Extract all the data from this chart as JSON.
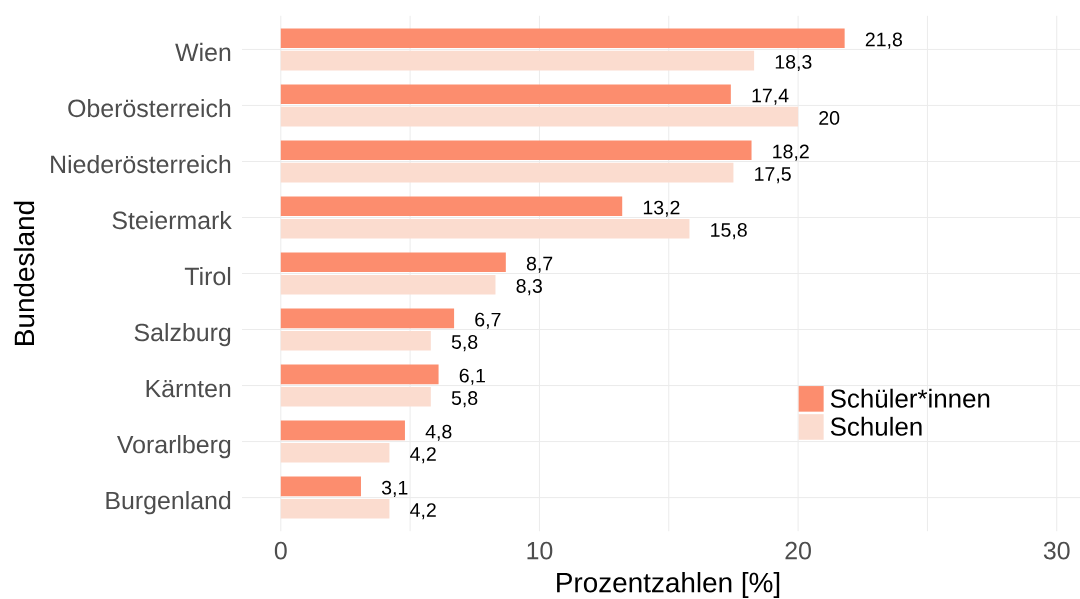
{
  "chart_data": {
    "type": "bar",
    "orientation": "horizontal",
    "xlabel": "Prozentzahlen [%]",
    "ylabel": "Bundesland",
    "categories": [
      "Wien",
      "Oberösterreich",
      "Niederösterreich",
      "Steiermark",
      "Tirol",
      "Salzburg",
      "Kärnten",
      "Vorarlberg",
      "Burgenland"
    ],
    "series": [
      {
        "name": "Schüler*innen",
        "color": "#fc8d6e",
        "values": [
          21.8,
          17.4,
          18.2,
          13.2,
          8.7,
          6.7,
          6.1,
          4.8,
          3.1
        ],
        "value_labels": [
          "21,8",
          "17,4",
          "18,2",
          "13,2",
          "8,7",
          "6,7",
          "6,1",
          "4,8",
          "3,1"
        ]
      },
      {
        "name": "Schulen",
        "color": "#fbdccf",
        "values": [
          18.3,
          20,
          17.5,
          15.8,
          8.3,
          5.8,
          5.8,
          4.2,
          4.2
        ],
        "value_labels": [
          "18,3",
          "20",
          "17,5",
          "15,8",
          "8,3",
          "5,8",
          "5,8",
          "4,2",
          "4,2"
        ]
      }
    ],
    "xlim": [
      -1.5,
      30.9
    ],
    "xticks": [
      0,
      {
        "value": 5,
        "label": null
      },
      10,
      {
        "value": 15,
        "label": null
      },
      20,
      {
        "value": 25,
        "label": null
      },
      30
    ],
    "grid": true,
    "legend": "bottom right"
  }
}
